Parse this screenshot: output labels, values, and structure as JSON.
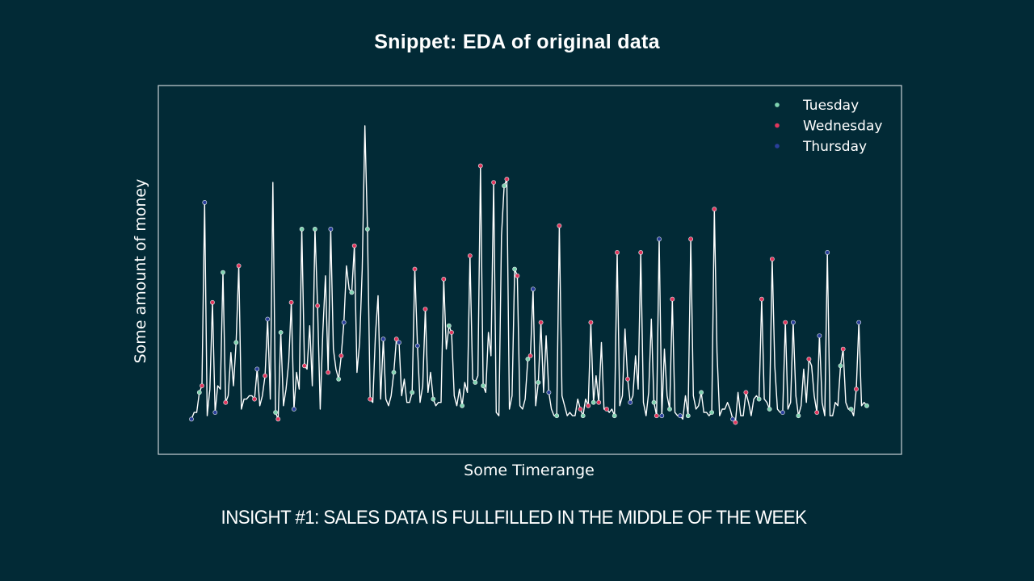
{
  "slide": {
    "title": "Snippet: EDA of original data",
    "insight": "INSIGHT #1: SALES DATA IS FULLFILLED IN THE MIDDLE OF THE WEEK"
  },
  "chart_data": {
    "type": "line",
    "title": "",
    "xlabel": "Some Timerange",
    "ylabel": "Some amount of money",
    "x_ticks_shown": false,
    "y_ticks_shown": false,
    "ylim": [
      0,
      1
    ],
    "grid": false,
    "legend_position": "top-right",
    "line_color": "#ffffff",
    "series": [
      {
        "name": "Tuesday",
        "color": "#7fd3b0",
        "values": [
          0.05,
          0.42,
          0.06,
          0.28,
          0.04,
          0.31,
          0.05,
          0.62,
          0.62,
          0.17,
          0.43,
          0.62,
          0.09,
          0.2,
          0.05,
          0.33,
          0.09,
          0.18,
          0.09,
          0.11,
          0.06,
          0.08,
          0.06,
          0.09,
          0.08,
          0.05,
          0.07,
          0.06,
          0.06,
          0.04,
          0.06,
          0.1,
          0.05,
          0.06,
          0.08,
          0.05,
          0.15,
          0.09
        ]
      },
      {
        "name": "Wednesday",
        "color": "#e0365c",
        "values": [
          0.15,
          0.4,
          0.1,
          0.49,
          0.1,
          0.05,
          0.4,
          0.21,
          0.39,
          0.18,
          0.57,
          0.11,
          1.0,
          0.29,
          0.5,
          0.38,
          0.47,
          0.31,
          0.54,
          0.81,
          0.76,
          0.77,
          0.24,
          0.34,
          0.61,
          0.04,
          0.53,
          0.36,
          0.15,
          0.41,
          0.54,
          0.06,
          0.59,
          0.68,
          0.41,
          0.56,
          0.25,
          0.34,
          0.06,
          0.26,
          0.23
        ]
      },
      {
        "name": "Thursday",
        "color": "#2a3f9b",
        "values": [
          0.7,
          0.07,
          0.11,
          0.2,
          0.35,
          0.05,
          0.19,
          0.62,
          0.34,
          0.22,
          0.28,
          0.11,
          0.29,
          0.09,
          0.15,
          0.44,
          0.06,
          0.53,
          0.05,
          0.1,
          0.48,
          0.13,
          0.06,
          0.04,
          0.13,
          0.04,
          0.33,
          0.1,
          0.06,
          0.31,
          0.53,
          0.05,
          0.34,
          0.1,
          0.05,
          0.11
        ]
      }
    ],
    "points": [
      [
        0.05,
        "Thursday"
      ],
      [
        0.07,
        ""
      ],
      [
        0.07,
        ""
      ],
      [
        0.13,
        "Tuesday"
      ],
      [
        0.15,
        "Wednesday"
      ],
      [
        0.7,
        "Thursday"
      ],
      [
        0.06,
        ""
      ],
      [
        0.14,
        ""
      ],
      [
        0.4,
        "Wednesday"
      ],
      [
        0.07,
        "Thursday"
      ],
      [
        0.15,
        ""
      ],
      [
        0.14,
        ""
      ],
      [
        0.49,
        "Tuesday"
      ],
      [
        0.1,
        "Wednesday"
      ],
      [
        0.12,
        ""
      ],
      [
        0.25,
        ""
      ],
      [
        0.15,
        ""
      ],
      [
        0.28,
        "Tuesday"
      ],
      [
        0.51,
        "Wednesday"
      ],
      [
        0.08,
        ""
      ],
      [
        0.11,
        ""
      ],
      [
        0.11,
        ""
      ],
      [
        0.12,
        ""
      ],
      [
        0.12,
        ""
      ],
      [
        0.11,
        "Wednesday"
      ],
      [
        0.2,
        "Thursday"
      ],
      [
        0.09,
        ""
      ],
      [
        0.12,
        ""
      ],
      [
        0.18,
        "Wednesday"
      ],
      [
        0.35,
        "Thursday"
      ],
      [
        0.11,
        ""
      ],
      [
        0.76,
        ""
      ],
      [
        0.07,
        "Tuesday"
      ],
      [
        0.05,
        "Wednesday"
      ],
      [
        0.31,
        "Tuesday"
      ],
      [
        0.09,
        ""
      ],
      [
        0.14,
        ""
      ],
      [
        0.22,
        ""
      ],
      [
        0.4,
        "Wednesday"
      ],
      [
        0.08,
        "Thursday"
      ],
      [
        0.19,
        ""
      ],
      [
        0.14,
        ""
      ],
      [
        0.62,
        "Tuesday"
      ],
      [
        0.21,
        "Wednesday"
      ],
      [
        0.2,
        ""
      ],
      [
        0.33,
        ""
      ],
      [
        0.15,
        ""
      ],
      [
        0.62,
        "Tuesday"
      ],
      [
        0.39,
        "Wednesday"
      ],
      [
        0.08,
        ""
      ],
      [
        0.31,
        ""
      ],
      [
        0.48,
        ""
      ],
      [
        0.19,
        "Wednesday"
      ],
      [
        0.62,
        "Thursday"
      ],
      [
        0.26,
        ""
      ],
      [
        0.2,
        ""
      ],
      [
        0.17,
        "Tuesday"
      ],
      [
        0.24,
        "Wednesday"
      ],
      [
        0.34,
        "Thursday"
      ],
      [
        0.51,
        ""
      ],
      [
        0.44,
        ""
      ],
      [
        0.43,
        "Tuesday"
      ],
      [
        0.57,
        "Wednesday"
      ],
      [
        0.19,
        ""
      ],
      [
        0.28,
        ""
      ],
      [
        0.5,
        ""
      ],
      [
        0.93,
        ""
      ],
      [
        0.62,
        "Tuesday"
      ],
      [
        0.11,
        "Wednesday"
      ],
      [
        0.1,
        ""
      ],
      [
        0.3,
        ""
      ],
      [
        0.42,
        ""
      ],
      [
        0.11,
        ""
      ],
      [
        0.29,
        "Thursday"
      ],
      [
        0.11,
        ""
      ],
      [
        0.09,
        ""
      ],
      [
        0.12,
        ""
      ],
      [
        0.19,
        "Tuesday"
      ],
      [
        0.29,
        "Wednesday"
      ],
      [
        0.28,
        "Thursday"
      ],
      [
        0.12,
        ""
      ],
      [
        0.17,
        ""
      ],
      [
        0.1,
        ""
      ],
      [
        0.1,
        ""
      ],
      [
        0.13,
        "Tuesday"
      ],
      [
        0.5,
        "Wednesday"
      ],
      [
        0.27,
        "Thursday"
      ],
      [
        0.1,
        ""
      ],
      [
        0.15,
        ""
      ],
      [
        0.38,
        "Wednesday"
      ],
      [
        0.13,
        ""
      ],
      [
        0.19,
        ""
      ],
      [
        0.11,
        "Tuesday"
      ],
      [
        0.09,
        ""
      ],
      [
        0.1,
        ""
      ],
      [
        0.1,
        ""
      ],
      [
        0.47,
        "Wednesday"
      ],
      [
        0.26,
        ""
      ],
      [
        0.33,
        "Tuesday"
      ],
      [
        0.31,
        "Wednesday"
      ],
      [
        0.12,
        ""
      ],
      [
        0.09,
        ""
      ],
      [
        0.14,
        ""
      ],
      [
        0.09,
        "Tuesday"
      ],
      [
        0.16,
        ""
      ],
      [
        0.13,
        ""
      ],
      [
        0.54,
        "Wednesday"
      ],
      [
        0.17,
        ""
      ],
      [
        0.16,
        "Tuesday"
      ],
      [
        0.18,
        ""
      ],
      [
        0.81,
        "Wednesday"
      ],
      [
        0.15,
        "Tuesday"
      ],
      [
        0.13,
        ""
      ],
      [
        0.31,
        ""
      ],
      [
        0.24,
        ""
      ],
      [
        0.76,
        "Wednesday"
      ],
      [
        0.07,
        ""
      ],
      [
        0.06,
        ""
      ],
      [
        0.6,
        ""
      ],
      [
        0.75,
        "Tuesday"
      ],
      [
        0.77,
        "Wednesday"
      ],
      [
        0.08,
        ""
      ],
      [
        0.12,
        ""
      ],
      [
        0.5,
        "Tuesday"
      ],
      [
        0.48,
        "Wednesday"
      ],
      [
        0.09,
        ""
      ],
      [
        0.08,
        ""
      ],
      [
        0.11,
        ""
      ],
      [
        0.23,
        "Tuesday"
      ],
      [
        0.24,
        "Wednesday"
      ],
      [
        0.44,
        "Thursday"
      ],
      [
        0.09,
        ""
      ],
      [
        0.16,
        "Tuesday"
      ],
      [
        0.34,
        "Wednesday"
      ],
      [
        0.13,
        ""
      ],
      [
        0.3,
        ""
      ],
      [
        0.13,
        "Thursday"
      ],
      [
        0.08,
        ""
      ],
      [
        0.06,
        ""
      ],
      [
        0.06,
        "Tuesday"
      ],
      [
        0.63,
        "Wednesday"
      ],
      [
        0.12,
        ""
      ],
      [
        0.09,
        ""
      ],
      [
        0.06,
        ""
      ],
      [
        0.07,
        ""
      ],
      [
        0.06,
        ""
      ],
      [
        0.06,
        ""
      ],
      [
        0.11,
        ""
      ],
      [
        0.08,
        "Wednesday"
      ],
      [
        0.06,
        "Tuesday"
      ],
      [
        0.11,
        ""
      ],
      [
        0.09,
        "Wednesday"
      ],
      [
        0.34,
        "Wednesday"
      ],
      [
        0.1,
        "Tuesday"
      ],
      [
        0.18,
        ""
      ],
      [
        0.1,
        "Wednesday"
      ],
      [
        0.28,
        ""
      ],
      [
        0.08,
        ""
      ],
      [
        0.08,
        "Wednesday"
      ],
      [
        0.07,
        ""
      ],
      [
        0.08,
        ""
      ],
      [
        0.06,
        "Tuesday"
      ],
      [
        0.55,
        "Wednesday"
      ],
      [
        0.09,
        ""
      ],
      [
        0.12,
        ""
      ],
      [
        0.32,
        ""
      ],
      [
        0.17,
        "Wednesday"
      ],
      [
        0.1,
        "Thursday"
      ],
      [
        0.12,
        ""
      ],
      [
        0.24,
        ""
      ],
      [
        0.14,
        ""
      ],
      [
        0.55,
        "Wednesday"
      ],
      [
        0.1,
        ""
      ],
      [
        0.06,
        ""
      ],
      [
        0.13,
        ""
      ],
      [
        0.35,
        ""
      ],
      [
        0.1,
        "Tuesday"
      ],
      [
        0.06,
        "Wednesday"
      ],
      [
        0.59,
        "Thursday"
      ],
      [
        0.06,
        "Thursday"
      ],
      [
        0.26,
        ""
      ],
      [
        0.12,
        ""
      ],
      [
        0.08,
        "Tuesday"
      ],
      [
        0.41,
        "Wednesday"
      ],
      [
        0.07,
        ""
      ],
      [
        0.06,
        ""
      ],
      [
        0.06,
        "Thursday"
      ],
      [
        0.05,
        ""
      ],
      [
        0.12,
        ""
      ],
      [
        0.06,
        "Tuesday"
      ],
      [
        0.59,
        "Wednesday"
      ],
      [
        0.12,
        ""
      ],
      [
        0.08,
        ""
      ],
      [
        0.09,
        ""
      ],
      [
        0.13,
        "Tuesday"
      ],
      [
        0.07,
        ""
      ],
      [
        0.07,
        ""
      ],
      [
        0.06,
        ""
      ],
      [
        0.07,
        "Tuesday"
      ],
      [
        0.68,
        "Wednesday"
      ],
      [
        0.25,
        ""
      ],
      [
        0.06,
        ""
      ],
      [
        0.08,
        ""
      ],
      [
        0.08,
        ""
      ],
      [
        0.1,
        ""
      ],
      [
        0.08,
        ""
      ],
      [
        0.05,
        "Thursday"
      ],
      [
        0.04,
        "Wednesday"
      ],
      [
        0.13,
        ""
      ],
      [
        0.06,
        ""
      ],
      [
        0.06,
        ""
      ],
      [
        0.13,
        "Wednesday"
      ],
      [
        0.1,
        ""
      ],
      [
        0.06,
        ""
      ],
      [
        0.11,
        ""
      ],
      [
        0.12,
        ""
      ],
      [
        0.11,
        "Tuesday"
      ],
      [
        0.41,
        "Wednesday"
      ],
      [
        0.11,
        ""
      ],
      [
        0.1,
        ""
      ],
      [
        0.08,
        "Tuesday"
      ],
      [
        0.53,
        "Wednesday"
      ],
      [
        0.21,
        ""
      ],
      [
        0.08,
        ""
      ],
      [
        0.07,
        ""
      ],
      [
        0.07,
        "Thursday"
      ],
      [
        0.34,
        "Wednesday"
      ],
      [
        0.08,
        ""
      ],
      [
        0.1,
        ""
      ],
      [
        0.34,
        "Thursday"
      ],
      [
        0.12,
        ""
      ],
      [
        0.06,
        "Tuesday"
      ],
      [
        0.09,
        ""
      ],
      [
        0.2,
        ""
      ],
      [
        0.1,
        ""
      ],
      [
        0.23,
        "Wednesday"
      ],
      [
        0.21,
        ""
      ],
      [
        0.12,
        ""
      ],
      [
        0.07,
        "Wednesday"
      ],
      [
        0.3,
        "Thursday"
      ],
      [
        0.1,
        ""
      ],
      [
        0.06,
        ""
      ],
      [
        0.55,
        "Thursday"
      ],
      [
        0.06,
        ""
      ],
      [
        0.06,
        ""
      ],
      [
        0.1,
        ""
      ],
      [
        0.09,
        ""
      ],
      [
        0.21,
        "Tuesday"
      ],
      [
        0.26,
        "Wednesday"
      ],
      [
        0.1,
        ""
      ],
      [
        0.08,
        ""
      ],
      [
        0.08,
        "Tuesday"
      ],
      [
        0.06,
        ""
      ],
      [
        0.14,
        "Wednesday"
      ],
      [
        0.34,
        "Thursday"
      ],
      [
        0.09,
        ""
      ],
      [
        0.1,
        ""
      ],
      [
        0.09,
        "Tuesday"
      ]
    ]
  }
}
